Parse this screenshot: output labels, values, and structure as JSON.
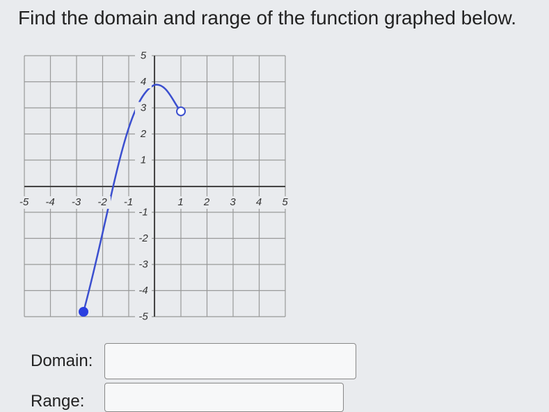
{
  "question": "Find the domain and range of the function graphed below.",
  "graph": {
    "x_labels": [
      -5,
      -4,
      -3,
      -2,
      -1,
      1,
      2,
      3,
      4,
      5
    ],
    "y_labels": [
      5,
      4,
      3,
      2,
      1,
      -1,
      -2,
      -3,
      -4,
      -5
    ]
  },
  "answers": {
    "domain_label": "Domain:",
    "range_label": "Range:"
  }
}
